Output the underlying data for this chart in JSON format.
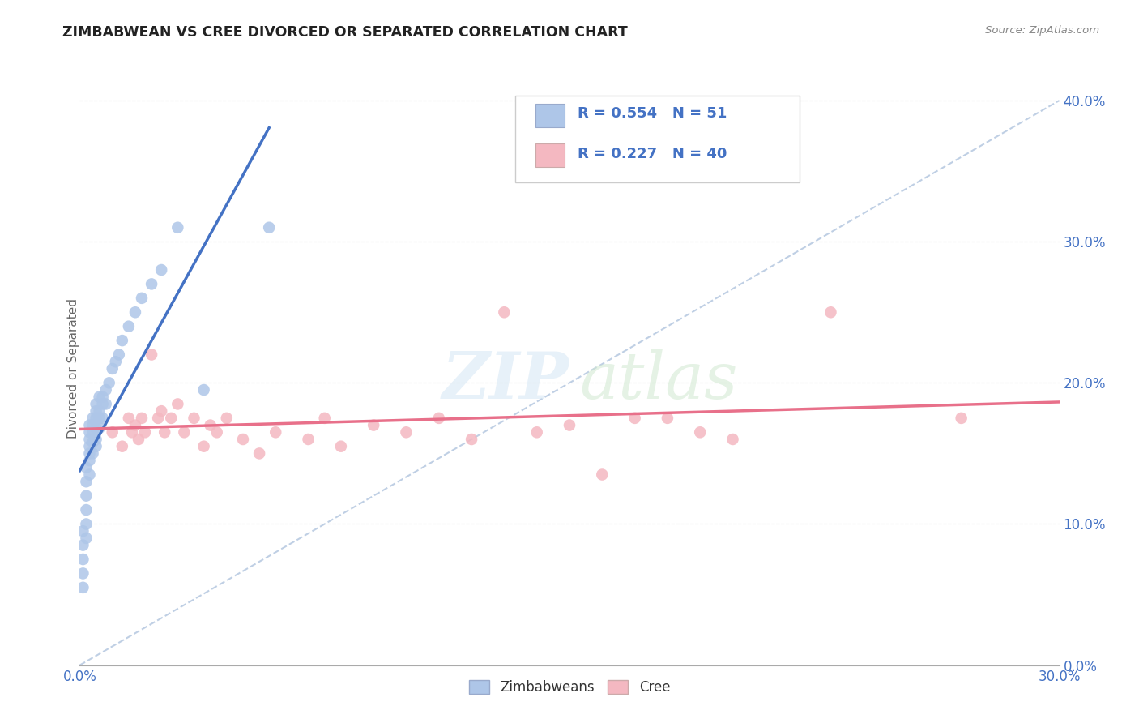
{
  "title": "ZIMBABWEAN VS CREE DIVORCED OR SEPARATED CORRELATION CHART",
  "source": "Source: ZipAtlas.com",
  "ylabel": "Divorced or Separated",
  "xlim": [
    0.0,
    0.3
  ],
  "ylim": [
    0.0,
    0.42
  ],
  "yticks": [
    0.0,
    0.1,
    0.2,
    0.3,
    0.4
  ],
  "ytick_labels": [
    "0.0%",
    "10.0%",
    "20.0%",
    "30.0%",
    "40.0%"
  ],
  "legend1_R": "0.554",
  "legend1_N": "51",
  "legend2_R": "0.227",
  "legend2_N": "40",
  "blue_color": "#AEC6E8",
  "pink_color": "#F4B8C1",
  "blue_line_color": "#4472C4",
  "pink_line_color": "#E8708A",
  "diagonal_color": "#B0C4DE",
  "zimbabwean_x": [
    0.001,
    0.001,
    0.001,
    0.001,
    0.001,
    0.002,
    0.002,
    0.002,
    0.002,
    0.002,
    0.002,
    0.003,
    0.003,
    0.003,
    0.003,
    0.003,
    0.003,
    0.003,
    0.004,
    0.004,
    0.004,
    0.004,
    0.004,
    0.005,
    0.005,
    0.005,
    0.005,
    0.005,
    0.005,
    0.006,
    0.006,
    0.006,
    0.006,
    0.007,
    0.007,
    0.007,
    0.008,
    0.008,
    0.009,
    0.01,
    0.011,
    0.012,
    0.013,
    0.015,
    0.017,
    0.019,
    0.022,
    0.025,
    0.03,
    0.038,
    0.058
  ],
  "zimbabwean_y": [
    0.055,
    0.065,
    0.075,
    0.085,
    0.095,
    0.09,
    0.1,
    0.11,
    0.12,
    0.13,
    0.14,
    0.135,
    0.145,
    0.15,
    0.155,
    0.16,
    0.165,
    0.17,
    0.15,
    0.158,
    0.165,
    0.17,
    0.175,
    0.155,
    0.16,
    0.168,
    0.175,
    0.18,
    0.185,
    0.168,
    0.175,
    0.18,
    0.19,
    0.175,
    0.185,
    0.19,
    0.185,
    0.195,
    0.2,
    0.21,
    0.215,
    0.22,
    0.23,
    0.24,
    0.25,
    0.26,
    0.27,
    0.28,
    0.31,
    0.195,
    0.31
  ],
  "cree_x": [
    0.01,
    0.013,
    0.015,
    0.016,
    0.017,
    0.018,
    0.019,
    0.02,
    0.022,
    0.024,
    0.025,
    0.026,
    0.028,
    0.03,
    0.032,
    0.035,
    0.038,
    0.04,
    0.042,
    0.045,
    0.05,
    0.055,
    0.06,
    0.07,
    0.075,
    0.08,
    0.09,
    0.1,
    0.11,
    0.12,
    0.13,
    0.14,
    0.15,
    0.16,
    0.17,
    0.18,
    0.19,
    0.2,
    0.23,
    0.27
  ],
  "cree_y": [
    0.165,
    0.155,
    0.175,
    0.165,
    0.17,
    0.16,
    0.175,
    0.165,
    0.22,
    0.175,
    0.18,
    0.165,
    0.175,
    0.185,
    0.165,
    0.175,
    0.155,
    0.17,
    0.165,
    0.175,
    0.16,
    0.15,
    0.165,
    0.16,
    0.175,
    0.155,
    0.17,
    0.165,
    0.175,
    0.16,
    0.25,
    0.165,
    0.17,
    0.135,
    0.175,
    0.175,
    0.165,
    0.16,
    0.25,
    0.175
  ]
}
